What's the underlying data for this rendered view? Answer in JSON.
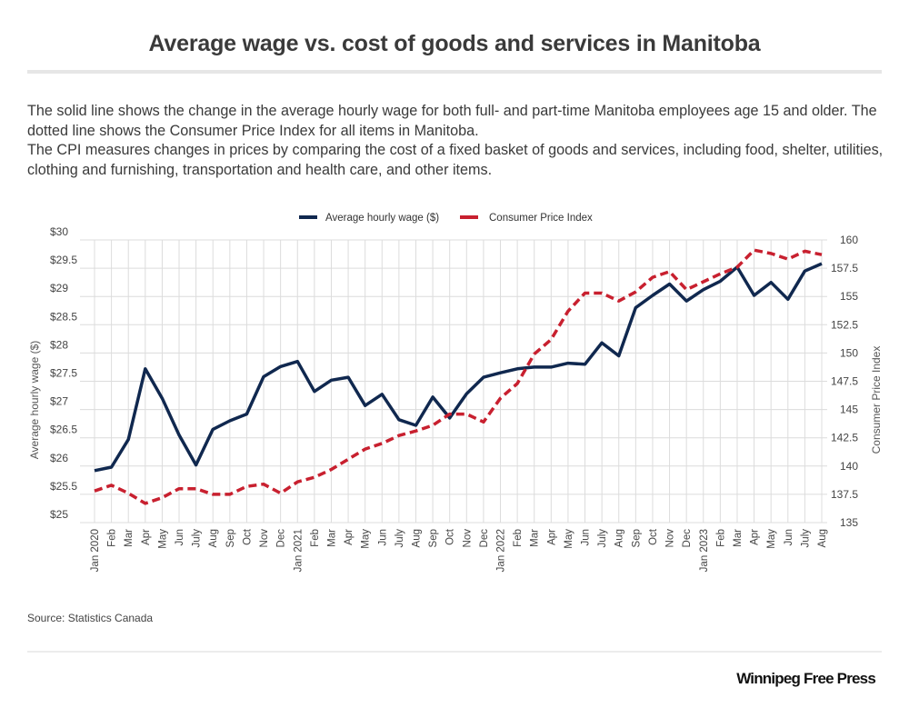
{
  "header": {
    "title": "Average wage vs. cost of goods and services in Manitoba",
    "description": [
      "The solid line shows the change in the average hourly wage for both full- and part-time Manitoba employees age 15 and older. The dotted line shows the Consumer Price Index for all items in Manitoba.",
      "The CPI measures changes in prices by comparing the cost of a fixed basket of goods and services, including food, shelter, utilities, clothing and furnishing, transportation and health care, and other items."
    ]
  },
  "footer": {
    "source": "Source: Statistics Canada",
    "logo": "Winnipeg Free Press"
  },
  "chart_data": {
    "type": "line",
    "title": "Average wage vs. cost of goods and services in Manitoba",
    "xlabel": "",
    "ylabel": "Average hourly wage ($)",
    "y2label": "Consumer Price Index",
    "ylim": [
      25,
      30
    ],
    "y2lim": [
      135,
      160
    ],
    "yticks": [
      "$25",
      "$25.5",
      "$26",
      "$26.5",
      "$27",
      "$27.5",
      "$28",
      "$28.5",
      "$29",
      "$29.5",
      "$30"
    ],
    "y2ticks": [
      "135",
      "137.5",
      "140",
      "142.5",
      "145",
      "147.5",
      "150",
      "152.5",
      "155",
      "157.5",
      "160"
    ],
    "grid": true,
    "legend_position": "top-center",
    "categories": [
      "Jan 2020",
      "Feb",
      "Mar",
      "Apr",
      "May",
      "Jun",
      "July",
      "Aug",
      "Sep",
      "Oct",
      "Nov",
      "Dec",
      "Jan 2021",
      "Feb",
      "Mar",
      "Apr",
      "May",
      "Jun",
      "July",
      "Aug",
      "Sep",
      "Oct",
      "Nov",
      "Dec",
      "Jan 2022",
      "Feb",
      "Mar",
      "Apr",
      "May",
      "Jun",
      "July",
      "Aug",
      "Sep",
      "Oct",
      "Nov",
      "Dec",
      "Jan 2023",
      "Feb",
      "Mar",
      "Apr",
      "May",
      "Jun",
      "July",
      "Aug"
    ],
    "series": [
      {
        "name": "Average hourly wage ($)",
        "axis": "left",
        "style": "solid",
        "color": "#10284f",
        "values": [
          25.92,
          25.98,
          26.47,
          27.72,
          27.2,
          26.55,
          26.02,
          26.65,
          26.8,
          26.92,
          27.58,
          27.76,
          27.85,
          27.32,
          27.52,
          27.57,
          27.07,
          27.27,
          26.82,
          26.72,
          27.22,
          26.85,
          27.28,
          27.57,
          27.65,
          27.72,
          27.75,
          27.75,
          27.82,
          27.8,
          28.18,
          27.95,
          28.8,
          29.02,
          29.22,
          28.92,
          29.12,
          29.27,
          29.52,
          29.02,
          29.25,
          28.95,
          29.45,
          29.58
        ]
      },
      {
        "name": "Consumer Price Index",
        "axis": "right",
        "style": "dashed",
        "color": "#c8202f",
        "values": [
          137.8,
          138.3,
          137.6,
          136.7,
          137.2,
          138.0,
          138.0,
          137.5,
          137.5,
          138.2,
          138.4,
          137.6,
          138.6,
          139.0,
          139.7,
          140.6,
          141.5,
          142.0,
          142.7,
          143.1,
          143.6,
          144.6,
          144.6,
          143.9,
          146.0,
          147.3,
          149.9,
          151.2,
          153.7,
          155.3,
          155.3,
          154.6,
          155.4,
          156.7,
          157.2,
          155.6,
          156.3,
          157.0,
          157.6,
          159.1,
          158.8,
          158.3,
          159.0,
          158.7
        ]
      }
    ]
  }
}
